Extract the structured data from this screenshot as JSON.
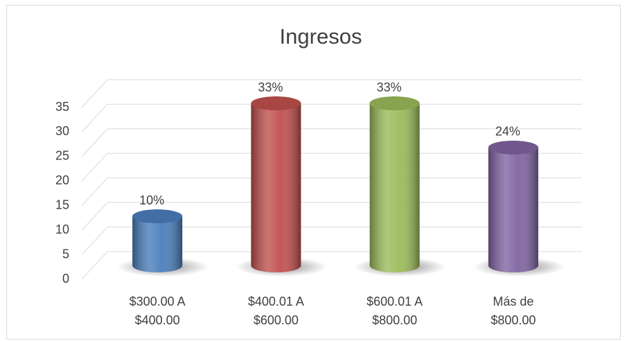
{
  "chart_data": {
    "type": "bar",
    "title": "Ingresos",
    "categories": [
      "$300.00 A $400.00",
      "$400.01 A $600.00",
      "$600.01 A $800.00",
      "Más de $800.00"
    ],
    "values": [
      10,
      33,
      33,
      24
    ],
    "value_labels": [
      "10%",
      "33%",
      "33%",
      "24%"
    ],
    "colors": [
      "#4a7ebb",
      "#c0504d",
      "#9bbb59",
      "#8064a2"
    ],
    "ylim": [
      0,
      35
    ],
    "yticks": [
      0,
      5,
      10,
      15,
      20,
      25,
      30,
      35
    ],
    "grid": true
  }
}
